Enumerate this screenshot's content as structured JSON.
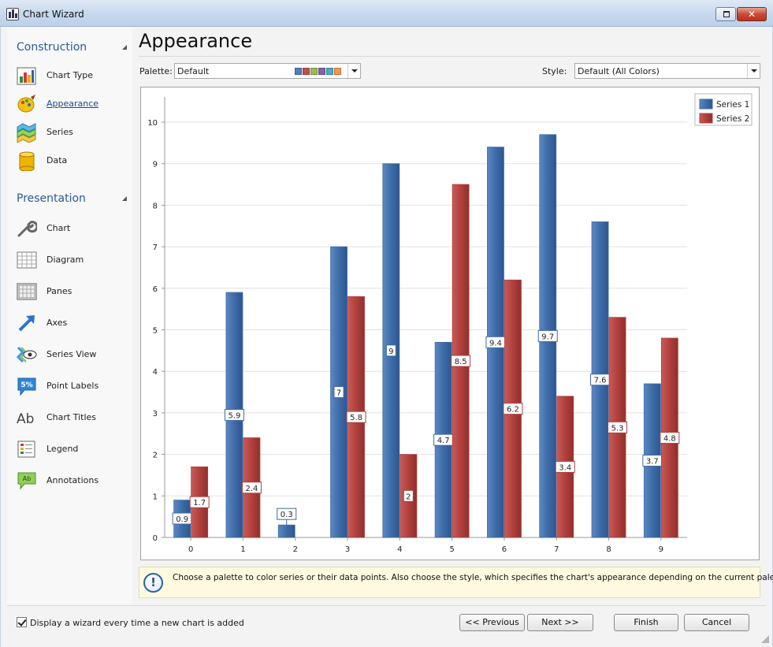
{
  "window": {
    "title": "Chart Wizard"
  },
  "sidebar": {
    "construction_title": "Construction",
    "construction_items": [
      {
        "label": "Chart Type",
        "icon": "chart-type-icon"
      },
      {
        "label": "Appearance",
        "icon": "appearance-icon"
      },
      {
        "label": "Series",
        "icon": "series-icon"
      },
      {
        "label": "Data",
        "icon": "data-icon"
      }
    ],
    "presentation_title": "Presentation",
    "presentation_items": [
      {
        "label": "Chart",
        "icon": "wrench-icon"
      },
      {
        "label": "Diagram",
        "icon": "diagram-icon"
      },
      {
        "label": "Panes",
        "icon": "panes-icon"
      },
      {
        "label": "Axes",
        "icon": "axes-icon"
      },
      {
        "label": "Series View",
        "icon": "series-view-icon"
      },
      {
        "label": "Point Labels",
        "icon": "point-labels-icon",
        "icon_text": "5%"
      },
      {
        "label": "Chart Titles",
        "icon": "chart-titles-icon",
        "icon_text": "Ab"
      },
      {
        "label": "Legend",
        "icon": "legend-icon"
      },
      {
        "label": "Annotations",
        "icon": "annotations-icon",
        "icon_text": "Ab"
      }
    ]
  },
  "main": {
    "title": "Appearance",
    "palette_label": "Palette:",
    "palette_value": "Default",
    "palette_colors": [
      "#4f81bd",
      "#c0504d",
      "#9bbb59",
      "#8064a2",
      "#4bacc6",
      "#f79646"
    ],
    "style_label": "Style:",
    "style_value": "Default (All Colors)"
  },
  "colors": {
    "series1": "#3e6ca7",
    "series2": "#b0403d"
  },
  "chart_data": {
    "type": "bar",
    "categories": [
      "0",
      "1",
      "2",
      "3",
      "4",
      "5",
      "6",
      "7",
      "8",
      "9"
    ],
    "series": [
      {
        "name": "Series 1",
        "values": [
          0.9,
          5.9,
          0.3,
          7,
          9,
          4.7,
          9.4,
          9.7,
          7.6,
          3.7
        ]
      },
      {
        "name": "Series 2",
        "values": [
          1.7,
          2.4,
          0,
          5.8,
          2,
          8.5,
          6.2,
          3.4,
          5.3,
          4.8
        ]
      }
    ],
    "y_ticks": [
      "0",
      "1",
      "2",
      "3",
      "4",
      "5",
      "6",
      "7",
      "8",
      "9",
      "10"
    ],
    "ylim": [
      0,
      10
    ],
    "grid": true,
    "legend": "top-right",
    "title": "",
    "xlabel": "",
    "ylabel": ""
  },
  "hint": {
    "text": "Choose a palette to color series or their data points. Also choose the style, which specifies the chart's appearance depending on the current palette."
  },
  "footer": {
    "checkbox_label": "Display a wizard every time a new chart is added",
    "previous_label": "<< Previous",
    "next_label": "Next >>",
    "finish_label": "Finish",
    "cancel_label": "Cancel"
  }
}
